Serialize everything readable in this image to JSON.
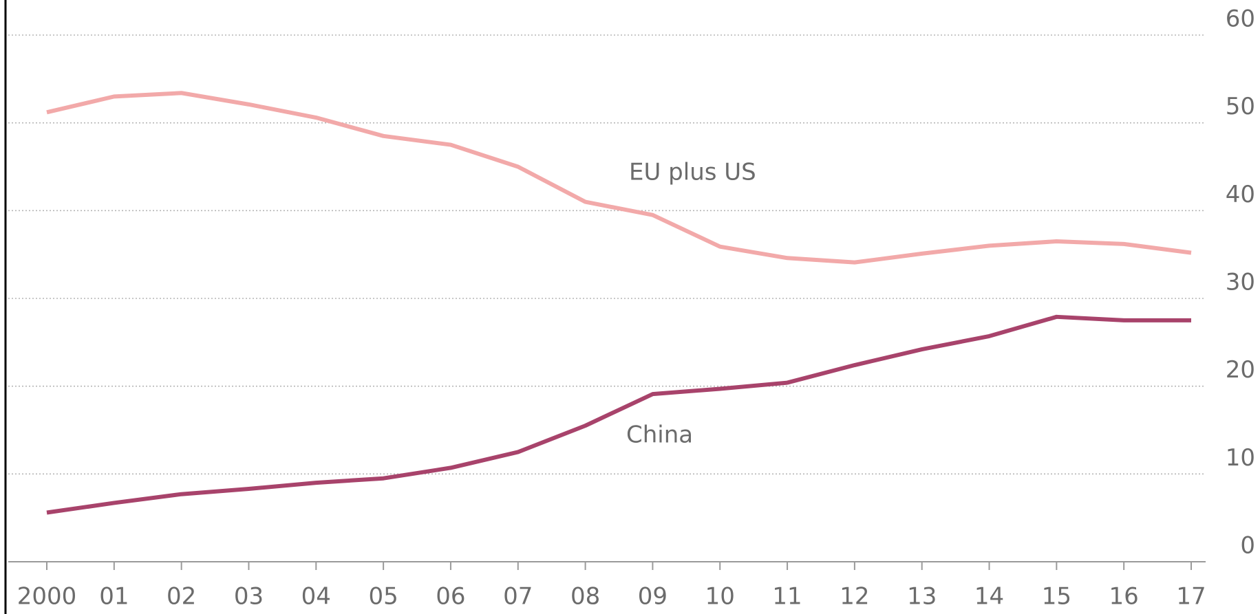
{
  "chart_data": {
    "type": "line",
    "categories": [
      "2000",
      "01",
      "02",
      "03",
      "04",
      "05",
      "06",
      "07",
      "08",
      "09",
      "10",
      "11",
      "12",
      "13",
      "14",
      "15",
      "16",
      "17"
    ],
    "series": [
      {
        "name": "EU plus US",
        "color": "#f2a9a9",
        "values": [
          51.2,
          53.0,
          53.4,
          52.1,
          50.6,
          48.5,
          47.5,
          45.0,
          41.0,
          39.5,
          35.9,
          34.6,
          34.1,
          35.1,
          36.0,
          36.5,
          36.2,
          35.2
        ]
      },
      {
        "name": "China",
        "color": "#a8436b",
        "values": [
          5.6,
          6.7,
          7.7,
          8.3,
          9.0,
          9.5,
          10.7,
          12.5,
          15.5,
          19.1,
          19.7,
          20.4,
          22.4,
          24.2,
          25.7,
          27.9,
          27.5,
          27.5
        ]
      }
    ],
    "ylim": [
      0,
      60
    ],
    "yticks": [
      0,
      10,
      20,
      30,
      40,
      50,
      60
    ],
    "grid": true
  }
}
